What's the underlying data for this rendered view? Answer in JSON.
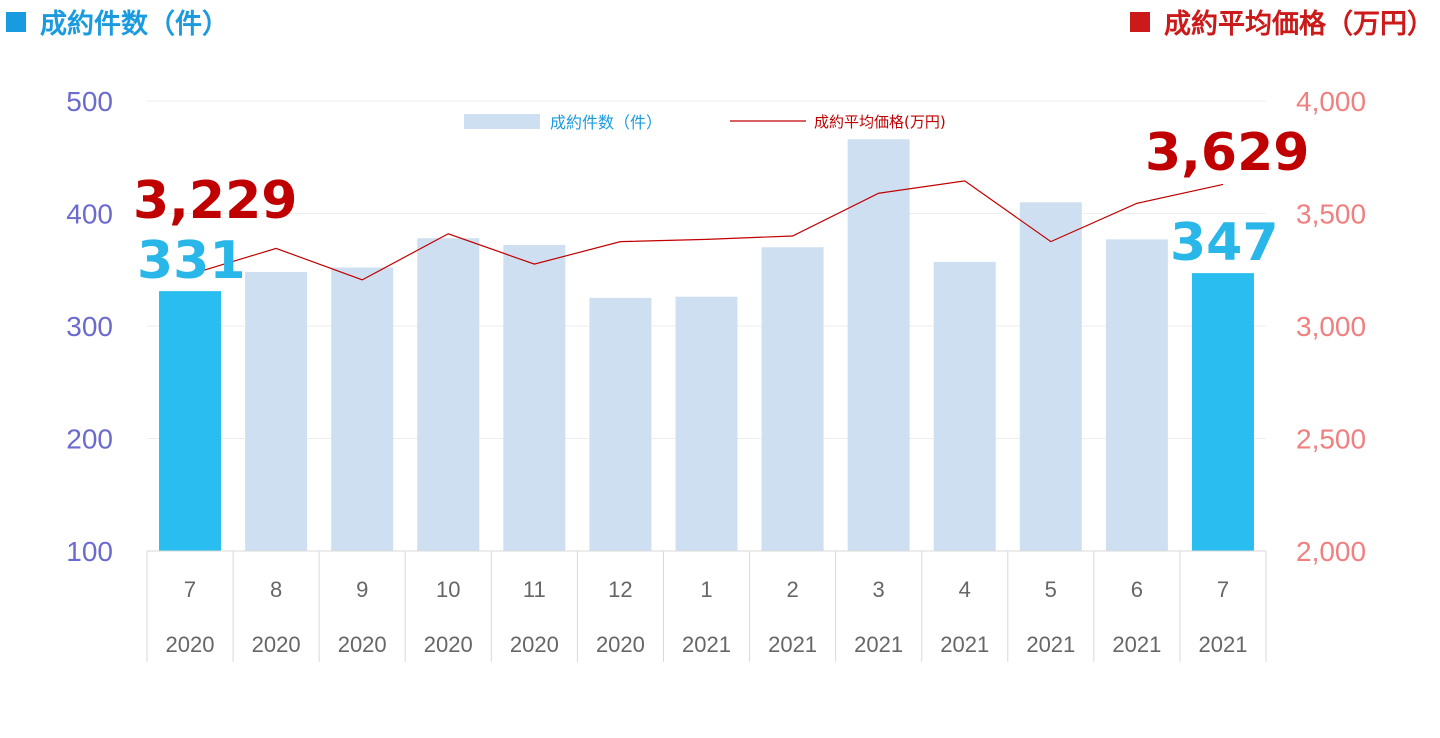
{
  "header": {
    "left_title": "成約件数（件）",
    "right_title": "成約平均価格（万円）",
    "left_color": "#1a9be0",
    "right_color": "#cc1a1a"
  },
  "chart_data": {
    "type": "bar",
    "categories": [
      "7",
      "8",
      "9",
      "10",
      "11",
      "12",
      "1",
      "2",
      "3",
      "4",
      "5",
      "6",
      "7"
    ],
    "years": [
      "2020",
      "2020",
      "2020",
      "2020",
      "2020",
      "2020",
      "2021",
      "2021",
      "2021",
      "2021",
      "2021",
      "2021",
      "2021"
    ],
    "series": [
      {
        "name": "成約件数（件）",
        "type": "bar",
        "axis": "left",
        "color": "#cfdff2",
        "highlight_color": "#29bdf0",
        "highlight_indices": [
          0,
          12
        ],
        "values": [
          331,
          348,
          352,
          378,
          372,
          325,
          326,
          370,
          466,
          357,
          410,
          377,
          347
        ]
      },
      {
        "name": "成約平均価格(万円)",
        "type": "line",
        "axis": "right",
        "color": "#c00000",
        "values": [
          3229,
          3345,
          3205,
          3410,
          3275,
          3375,
          3385,
          3400,
          3590,
          3645,
          3375,
          3545,
          3629
        ]
      }
    ],
    "y_left": {
      "lim": [
        100,
        500
      ],
      "ticks": [
        "100",
        "200",
        "300",
        "400",
        "500"
      ],
      "color": "#6b6bcf"
    },
    "y_right": {
      "lim": [
        2000,
        4000
      ],
      "ticks": [
        "2,000",
        "2,500",
        "3,000",
        "3,500",
        "4,000"
      ],
      "color": "#f08080"
    },
    "grid": true,
    "legend_position": "top-center",
    "annotations": {
      "start_price": "3,229",
      "start_count": "331",
      "end_price": "3,629",
      "end_count": "347"
    }
  }
}
